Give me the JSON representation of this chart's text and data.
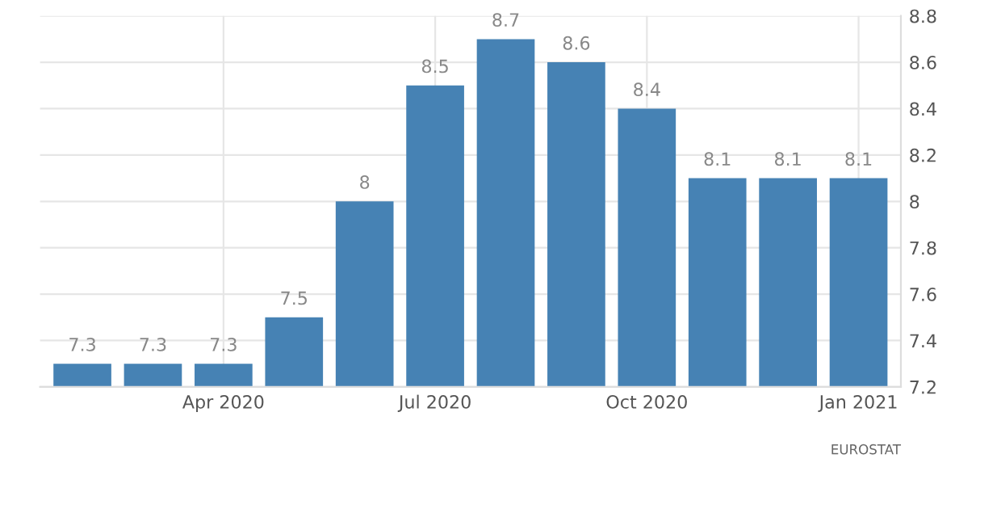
{
  "chart_data": {
    "type": "bar",
    "categories": [
      null,
      null,
      "Apr 2020",
      null,
      null,
      "Jul 2020",
      null,
      null,
      "Oct 2020",
      null,
      null,
      "Jan 2021"
    ],
    "values": [
      7.3,
      7.3,
      7.3,
      7.5,
      8,
      8.5,
      8.7,
      8.6,
      8.4,
      8.1,
      8.1,
      8.1
    ],
    "color": "#4682b4",
    "ylim": [
      7.2,
      8.8
    ],
    "yticks": [
      7.2,
      7.4,
      7.6,
      7.8,
      8,
      8.2,
      8.4,
      8.6,
      8.8
    ],
    "grid": true,
    "data_labels": true,
    "annotations": [
      "EUROSTAT"
    ]
  }
}
